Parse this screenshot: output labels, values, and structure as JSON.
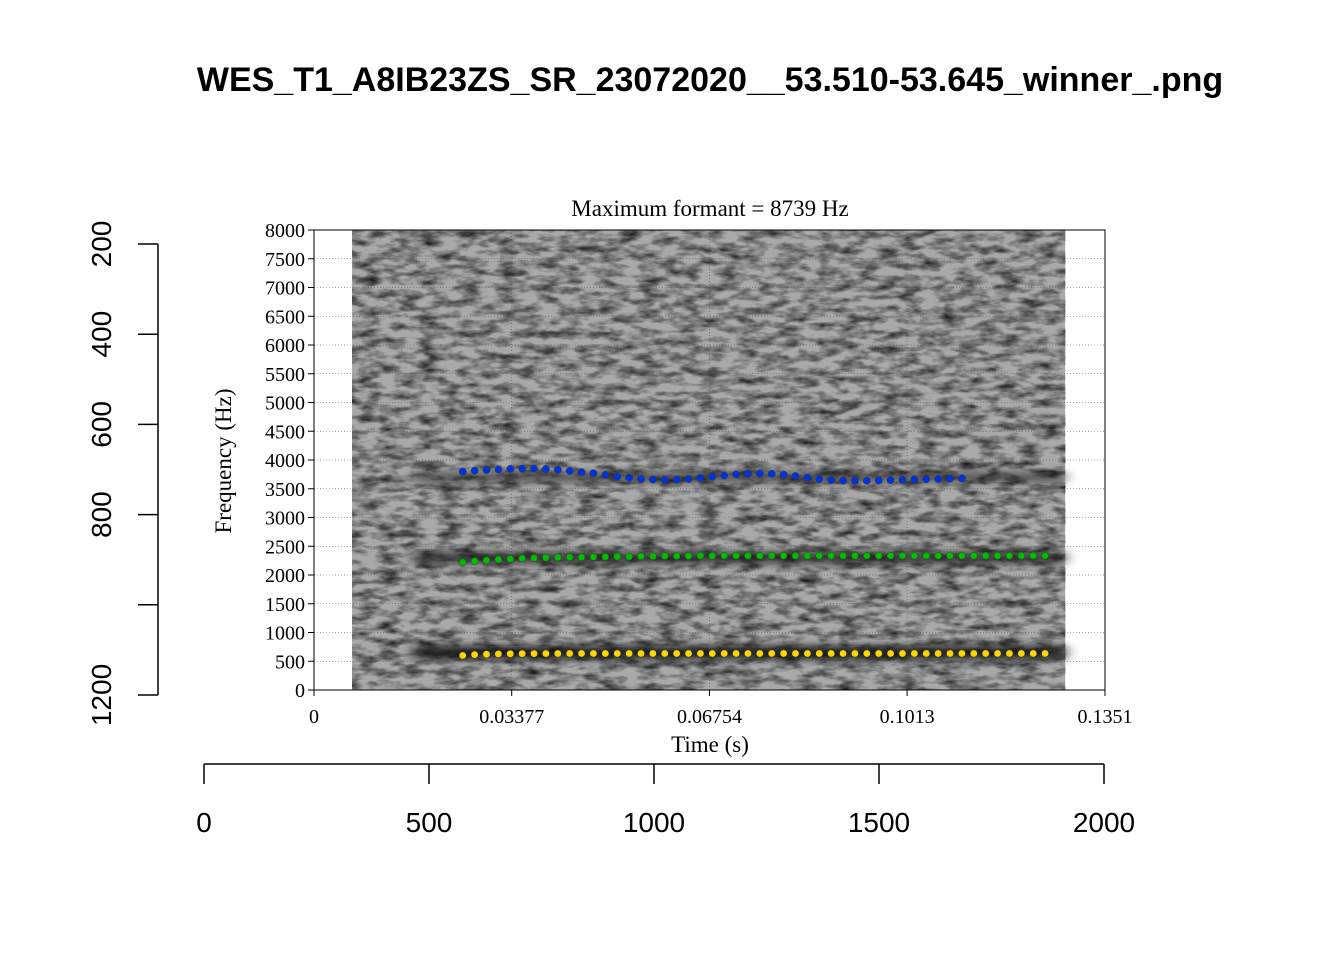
{
  "title": "WES_T1_A8IB23ZS_SR_23072020__53.510-53.645_winner_.png",
  "chart_data": {
    "type": "scatter",
    "subtitle": "Maximum formant = 8739 Hz",
    "xlabel": "Time (s)",
    "ylabel": "Frequency (Hz)",
    "xlim": [
      0,
      0.1351
    ],
    "ylim": [
      0,
      8000
    ],
    "x_ticks": [
      "0",
      "0.03377",
      "0.06754",
      "0.1013",
      "0.1351"
    ],
    "y_ticks": [
      "0",
      "500",
      "1000",
      "1500",
      "2000",
      "2500",
      "3000",
      "3500",
      "4000",
      "4500",
      "5000",
      "5500",
      "6000",
      "6500",
      "7000",
      "7500",
      "8000"
    ],
    "grid": true,
    "spectrogram_time_range": [
      0.0065,
      0.1283
    ],
    "outer_x_axis": {
      "range": [
        0,
        2000
      ],
      "ticks": [
        "0",
        "500",
        "1000",
        "1500",
        "2000"
      ]
    },
    "outer_y_axis": {
      "range": [
        200,
        1200
      ],
      "ticks": [
        "200",
        "400",
        "600",
        "800",
        "1200"
      ],
      "tick_values": [
        200,
        400,
        600,
        800,
        1000,
        1200
      ],
      "reversed": true
    },
    "time_start": 0.0254,
    "time_step": 0.00203,
    "series": [
      {
        "color": "#ffd700",
        "values": [
          600,
          615,
          622,
          627,
          630,
          632,
          633,
          634,
          634,
          635,
          635,
          635,
          635,
          635,
          635,
          635,
          635,
          635,
          635,
          635,
          635,
          635,
          635,
          635,
          635,
          635,
          635,
          635,
          635,
          635,
          635,
          635,
          635,
          635,
          635,
          635,
          635,
          635,
          635,
          635,
          635,
          635,
          635,
          635,
          635,
          635,
          635,
          635,
          635,
          635
        ]
      },
      {
        "color": "#00bb00",
        "values": [
          2220,
          2240,
          2255,
          2270,
          2280,
          2290,
          2295,
          2300,
          2305,
          2310,
          2310,
          2315,
          2315,
          2320,
          2320,
          2325,
          2325,
          2330,
          2330,
          2330,
          2335,
          2335,
          2335,
          2335,
          2335,
          2335,
          2335,
          2335,
          2335,
          2335,
          2335,
          2335,
          2335,
          2335,
          2335,
          2335,
          2335,
          2335,
          2335,
          2335,
          2335,
          2335,
          2335,
          2335,
          2335,
          2335,
          2335,
          2335,
          2335,
          2335
        ]
      },
      {
        "color": "#0033dd",
        "values": [
          3800,
          3815,
          3825,
          3835,
          3845,
          3850,
          3850,
          3845,
          3830,
          3810,
          3790,
          3770,
          3740,
          3710,
          3690,
          3670,
          3660,
          3655,
          3660,
          3670,
          3690,
          3710,
          3730,
          3750,
          3760,
          3765,
          3760,
          3745,
          3720,
          3695,
          3670,
          3650,
          3640,
          3640,
          3640,
          3645,
          3650,
          3655,
          3660,
          3665,
          3670,
          3675,
          3680
        ]
      }
    ]
  }
}
